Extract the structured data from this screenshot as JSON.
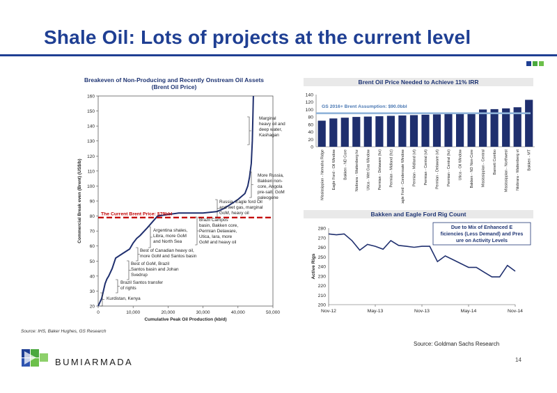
{
  "slide": {
    "title": "Shale Oil: Lots of projects at the current level",
    "source_left": "Source: IHS, Baker Hughes, GS Research",
    "source_right": "Source: Goldman Sachs Research",
    "page_number": "14",
    "brand": "BUMIARMADA",
    "accent_color": "#1f3f93",
    "square_colors": [
      "#1f3f93",
      "#4aa83e",
      "#6cc04a"
    ]
  },
  "chart_data": [
    {
      "type": "line",
      "title": "Breakeven of Non-Producing and Recently Onstream Oil Assets",
      "subtitle": "(Brent Oil Price)",
      "xlabel": "Cumulative Peak Oil Production (kb/d)",
      "ylabel": "Commercial Break even (Brent) (US$/b)",
      "xlim": [
        0,
        50000
      ],
      "ylim": [
        20,
        160
      ],
      "xticks": [
        "0",
        "10,000",
        "20,000",
        "30,000",
        "40,000",
        "50,000"
      ],
      "yticks": [
        "20",
        "30",
        "40",
        "50",
        "60",
        "70",
        "80",
        "90",
        "100",
        "110",
        "120",
        "130",
        "140",
        "150",
        "160"
      ],
      "x": [
        0,
        1000,
        1500,
        2000,
        2500,
        3000,
        4000,
        5000,
        7000,
        9000,
        10000,
        11000,
        12000,
        14000,
        15500,
        17000,
        20000,
        23000,
        26000,
        30000,
        34000,
        36000,
        38000,
        40000,
        41000,
        42000,
        42800,
        43300,
        43800,
        44100,
        44400
      ],
      "y": [
        20,
        25,
        30,
        35,
        38,
        40,
        45,
        52,
        55,
        58,
        62,
        65,
        67,
        72,
        76,
        80,
        81,
        82,
        82,
        82,
        83,
        85,
        88,
        91,
        93,
        95,
        100,
        106,
        115,
        130,
        160
      ],
      "reference_line": {
        "label": "The Current Brent Price:  $79bbl",
        "value": 79,
        "color": "#c00000"
      },
      "annotations": [
        {
          "text": "Marginal heavy oil and deep water, Kashagan"
        },
        {
          "text": "More Russia, Bakken non-core, Angola pre-salt, GoM paleogene"
        },
        {
          "text": "Russia, Eagle ford Oil and wet gas, marginal GoM, heavy oil"
        },
        {
          "text": "Brazil Campos basin, Bakken core, Permian Delaware, Utica, Iara, more GoM and heavy oil"
        },
        {
          "text": "Argentina shales, Libra, more GoM and North Sea"
        },
        {
          "text": "Best of Canadian heavy oil, more GoM and Santos basin"
        },
        {
          "text": "Best of GoM, Brazil Santos basin and Johan Svedrup"
        },
        {
          "text": "Brazil Santos transfer of rights"
        },
        {
          "text": "Kurdistan, Kenya"
        }
      ]
    },
    {
      "type": "bar",
      "title": "Brent Oil Price Needed to Achieve 11% IRR",
      "categories": [
        "Mississippian - Nemaha Ridge",
        "Eagle Ford - Oil Window",
        "Bakken - ND Core",
        "Niobrara - Wattenberg hz",
        "Utica - Wet Gas Window",
        "Permian - Delaware (hz)",
        "Permian - Midland (hz)",
        "Eagle Ford - Condensate Window",
        "Permian - Midland (vt)",
        "Permian - Central (vt)",
        "Permian - Delaware (vt)",
        "Permian - Central (hz)",
        "Utica - Oil Window",
        "Bakken - ND Non-Core",
        "Mississippian - Central",
        "Barnett Combo",
        "Mississippian - Northwest",
        "Niobrara - Wattenberg vt",
        "Bakken - MT"
      ],
      "values": [
        70,
        76,
        78,
        80,
        81,
        82,
        83,
        84,
        85,
        86,
        87,
        88,
        89,
        92,
        100,
        101,
        103,
        106,
        126
      ],
      "ylim": [
        0,
        140
      ],
      "yticks": [
        "0",
        "20",
        "40",
        "60",
        "80",
        "100",
        "120",
        "140"
      ],
      "bar_color": "#1f2f6e",
      "reference_line": {
        "label": "GS 2016+ Brent Assumption: $90.0bbl",
        "value": 90,
        "color": "#8fb3d9"
      }
    },
    {
      "type": "line",
      "title": "Bakken and Eagle Ford Rig Count",
      "ylabel": "Active Rigs",
      "ylim": [
        200,
        280
      ],
      "yticks": [
        "200",
        "210",
        "220",
        "230",
        "240",
        "250",
        "260",
        "270",
        "280"
      ],
      "xticks": [
        "Nov-12",
        "May-13",
        "Nov-13",
        "May-14",
        "Nov-14"
      ],
      "x": [
        0,
        1,
        2,
        3,
        4,
        5,
        6,
        7,
        8,
        9,
        10,
        11,
        12,
        13,
        14,
        15,
        16,
        17,
        18,
        19,
        20,
        21,
        22,
        23,
        24
      ],
      "y": [
        274,
        273,
        274,
        267,
        257,
        263,
        261,
        258,
        267,
        262,
        261,
        260,
        261,
        261,
        245,
        251,
        247,
        243,
        239,
        239,
        234,
        229,
        229,
        241,
        235
      ],
      "callout": "Due to Mix of Enhanced Efficiencies (Less Demand) and Pressure on Activity Levels",
      "line_color": "#1f2f6e"
    }
  ]
}
